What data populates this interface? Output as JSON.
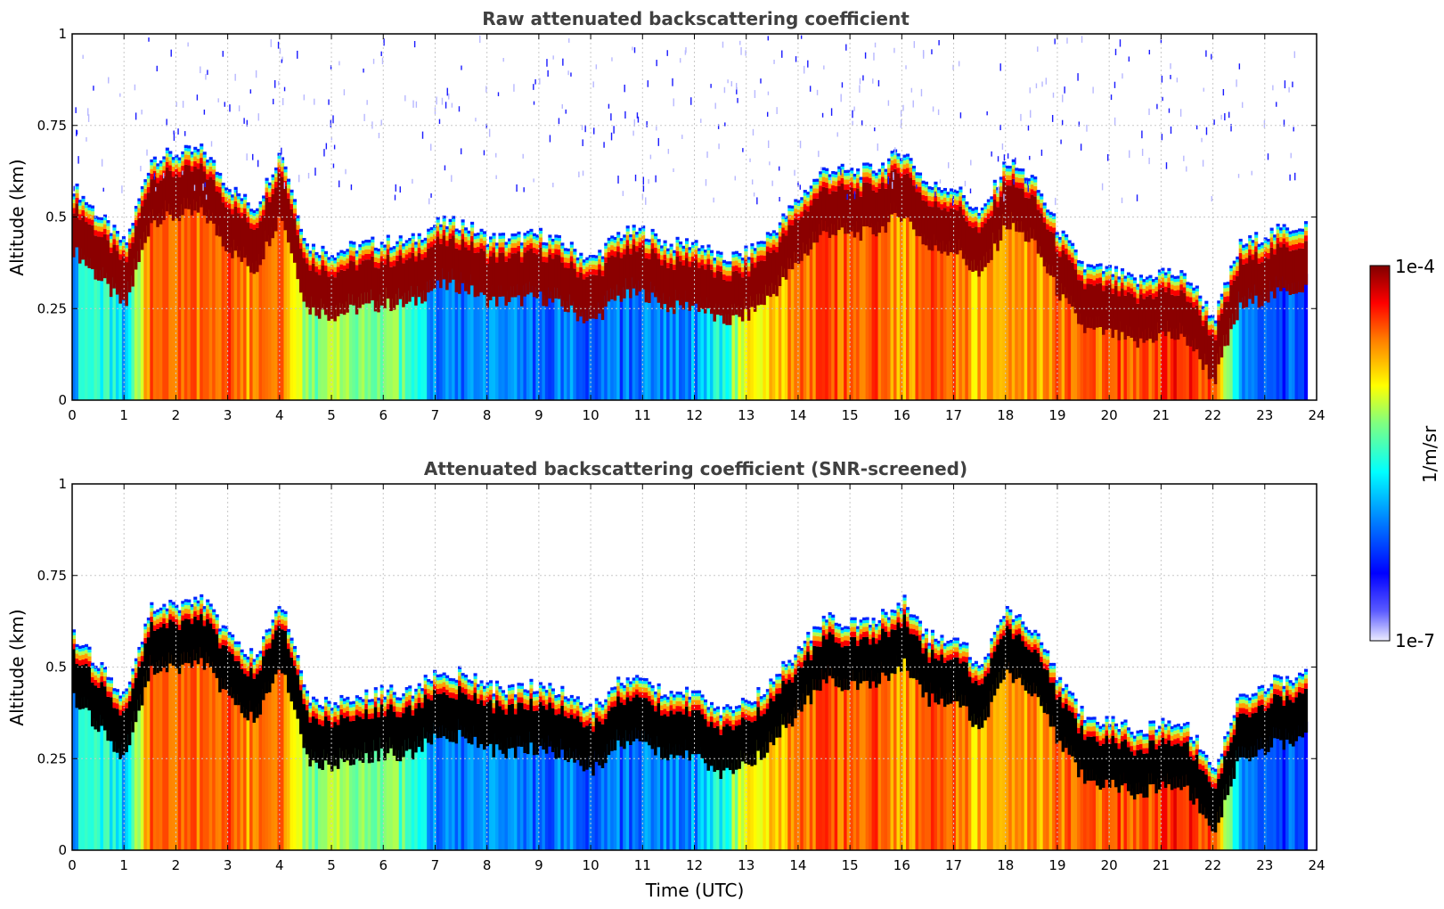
{
  "chart_data": [
    {
      "type": "heatmap",
      "title": "Raw attenuated backscattering coefficient",
      "xlabel": "",
      "ylabel": "Altitude (km)",
      "xlim": [
        0,
        24
      ],
      "ylim": [
        0,
        1
      ],
      "xticks": [
        "0",
        "1",
        "2",
        "3",
        "4",
        "5",
        "6",
        "7",
        "8",
        "9",
        "10",
        "11",
        "12",
        "13",
        "14",
        "15",
        "16",
        "17",
        "18",
        "19",
        "20",
        "21",
        "22",
        "23",
        "24"
      ],
      "yticks": [
        "0",
        "0.25",
        "0.5",
        "0.75",
        "1"
      ],
      "grid": true,
      "screened": false,
      "x": [
        0,
        0.5,
        1,
        1.5,
        2,
        2.5,
        3,
        3.5,
        4,
        4.5,
        5,
        5.5,
        6,
        6.5,
        7,
        7.5,
        8,
        8.5,
        9,
        9.5,
        10,
        10.5,
        11,
        11.5,
        12,
        12.5,
        13,
        13.5,
        14,
        14.5,
        15,
        15.5,
        16,
        16.5,
        17,
        17.5,
        18,
        18.5,
        19,
        19.5,
        20,
        20.5,
        21,
        21.5,
        22,
        22.5,
        23,
        23.5,
        23.8
      ],
      "layer_top_km": [
        0.58,
        0.5,
        0.42,
        0.66,
        0.67,
        0.68,
        0.58,
        0.52,
        0.68,
        0.42,
        0.4,
        0.42,
        0.43,
        0.43,
        0.48,
        0.48,
        0.44,
        0.44,
        0.45,
        0.42,
        0.38,
        0.45,
        0.46,
        0.42,
        0.43,
        0.38,
        0.4,
        0.46,
        0.55,
        0.63,
        0.62,
        0.63,
        0.68,
        0.58,
        0.58,
        0.5,
        0.65,
        0.6,
        0.46,
        0.36,
        0.35,
        0.32,
        0.35,
        0.33,
        0.22,
        0.42,
        0.45,
        0.47,
        0.48
      ],
      "intensity": [
        0.3,
        0.45,
        0.3,
        0.9,
        0.85,
        0.9,
        0.9,
        0.8,
        0.92,
        0.55,
        0.55,
        0.55,
        0.55,
        0.45,
        0.2,
        0.2,
        0.2,
        0.2,
        0.2,
        0.2,
        0.2,
        0.2,
        0.2,
        0.2,
        0.25,
        0.4,
        0.7,
        0.75,
        0.85,
        0.9,
        0.9,
        0.9,
        0.8,
        0.9,
        0.85,
        0.75,
        0.8,
        0.8,
        0.85,
        0.85,
        0.9,
        0.9,
        0.95,
        0.95,
        0.9,
        0.3,
        0.15,
        0.15,
        0.15
      ]
    },
    {
      "type": "heatmap",
      "title": "Attenuated backscattering coefficient (SNR-screened)",
      "xlabel": "Time (UTC)",
      "ylabel": "Altitude (km)",
      "xlim": [
        0,
        24
      ],
      "ylim": [
        0,
        1
      ],
      "xticks": [
        "0",
        "1",
        "2",
        "3",
        "4",
        "5",
        "6",
        "7",
        "8",
        "9",
        "10",
        "11",
        "12",
        "13",
        "14",
        "15",
        "16",
        "17",
        "18",
        "19",
        "20",
        "21",
        "22",
        "23",
        "24"
      ],
      "yticks": [
        "0",
        "0.25",
        "0.5",
        "0.75",
        "1"
      ],
      "grid": true,
      "screened": true,
      "x": [
        0,
        0.5,
        1,
        1.5,
        2,
        2.5,
        3,
        3.5,
        4,
        4.5,
        5,
        5.5,
        6,
        6.5,
        7,
        7.5,
        8,
        8.5,
        9,
        9.5,
        10,
        10.5,
        11,
        11.5,
        12,
        12.5,
        13,
        13.5,
        14,
        14.5,
        15,
        15.5,
        16,
        16.5,
        17,
        17.5,
        18,
        18.5,
        19,
        19.5,
        20,
        20.5,
        21,
        21.5,
        22,
        22.5,
        23,
        23.5,
        23.8
      ],
      "layer_top_km": [
        0.58,
        0.5,
        0.42,
        0.66,
        0.67,
        0.68,
        0.58,
        0.52,
        0.68,
        0.42,
        0.4,
        0.42,
        0.43,
        0.43,
        0.48,
        0.48,
        0.44,
        0.44,
        0.45,
        0.42,
        0.38,
        0.45,
        0.46,
        0.42,
        0.43,
        0.38,
        0.4,
        0.46,
        0.55,
        0.63,
        0.62,
        0.63,
        0.68,
        0.58,
        0.58,
        0.5,
        0.65,
        0.6,
        0.46,
        0.36,
        0.35,
        0.32,
        0.35,
        0.33,
        0.22,
        0.42,
        0.45,
        0.47,
        0.48
      ],
      "intensity": [
        0.3,
        0.45,
        0.3,
        0.9,
        0.85,
        0.9,
        0.9,
        0.8,
        0.92,
        0.55,
        0.55,
        0.55,
        0.55,
        0.45,
        0.2,
        0.2,
        0.2,
        0.2,
        0.2,
        0.2,
        0.2,
        0.2,
        0.2,
        0.2,
        0.25,
        0.4,
        0.7,
        0.75,
        0.85,
        0.9,
        0.9,
        0.9,
        0.8,
        0.9,
        0.85,
        0.75,
        0.8,
        0.8,
        0.85,
        0.85,
        0.9,
        0.9,
        0.95,
        0.95,
        0.9,
        0.3,
        0.15,
        0.15,
        0.15
      ]
    }
  ],
  "colorbar": {
    "label": "1/m/sr",
    "max_label": "1e-4",
    "min_label": "1e-7",
    "colormap": "jet",
    "min": 1e-07,
    "max": 0.0001
  },
  "colors": {
    "grid": "#c8c8c8",
    "title": "#404040",
    "screened_core": "#000000"
  }
}
